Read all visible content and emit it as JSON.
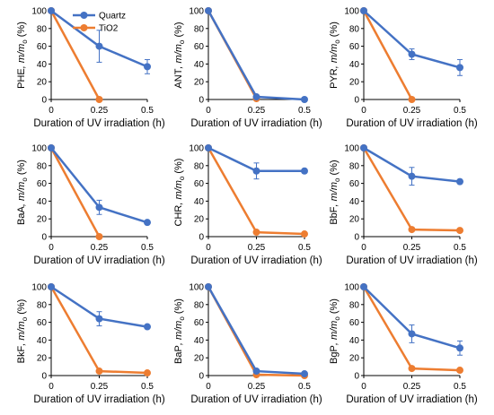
{
  "colors": {
    "quartz": "#4472C4",
    "tio2": "#ED7D31",
    "axis": "#000000"
  },
  "chart_data": [
    {
      "type": "line",
      "compound": "PHE",
      "ylabel_suffix": ", m/m",
      "ylabel_sub": "o",
      "ylabel_unit": " (%)",
      "xlabel": "Duration of UV irradiation (h)",
      "x": [
        0,
        0.25,
        0.5
      ],
      "x_ticks": [
        "0",
        "0.25",
        "0.5"
      ],
      "y_ticks": [
        "0",
        "20",
        "40",
        "60",
        "80",
        "100"
      ],
      "ylim": [
        0,
        100
      ],
      "legend": {
        "placement": "top-right",
        "entries": [
          "Quartz",
          "TiO2"
        ]
      },
      "series": [
        {
          "name": "Quartz",
          "values": [
            100,
            60,
            37
          ],
          "errors": [
            0,
            18,
            8
          ]
        },
        {
          "name": "TiO2",
          "values": [
            100,
            0,
            null
          ],
          "errors": [
            0,
            0,
            0
          ]
        }
      ]
    },
    {
      "type": "line",
      "compound": "ANT",
      "ylabel_suffix": ", m/m",
      "ylabel_sub": "o",
      "ylabel_unit": " (%)",
      "xlabel": "Duration of UV irradiation (h)",
      "x": [
        0,
        0.25,
        0.5
      ],
      "x_ticks": [
        "0",
        "0.25",
        "0.5"
      ],
      "y_ticks": [
        "0",
        "20",
        "40",
        "60",
        "80",
        "100"
      ],
      "ylim": [
        0,
        100
      ],
      "series": [
        {
          "name": "Quartz",
          "values": [
            100,
            3,
            0
          ],
          "errors": [
            0,
            0,
            0
          ]
        },
        {
          "name": "TiO2",
          "values": [
            100,
            1,
            null
          ],
          "errors": [
            0,
            0,
            0
          ]
        }
      ]
    },
    {
      "type": "line",
      "compound": "PYR",
      "ylabel_suffix": ", m/m",
      "ylabel_sub": "o",
      "ylabel_unit": " (%)",
      "xlabel": "Duration of UV irradiation (h)",
      "x": [
        0,
        0.25,
        0.5
      ],
      "x_ticks": [
        "0",
        "0.25",
        "0.5"
      ],
      "y_ticks": [
        "0",
        "20",
        "40",
        "60",
        "80",
        "100"
      ],
      "ylim": [
        0,
        100
      ],
      "series": [
        {
          "name": "Quartz",
          "values": [
            100,
            51,
            36
          ],
          "errors": [
            0,
            6,
            9
          ]
        },
        {
          "name": "TiO2",
          "values": [
            100,
            0,
            null
          ],
          "errors": [
            0,
            0,
            0
          ]
        }
      ]
    },
    {
      "type": "line",
      "compound": "BaA",
      "ylabel_suffix": ", m/m",
      "ylabel_sub": "o",
      "ylabel_unit": " (%)",
      "xlabel": "Duration of UV irradiation (h)",
      "x": [
        0,
        0.25,
        0.5
      ],
      "x_ticks": [
        "0",
        "0.25",
        "0.5"
      ],
      "y_ticks": [
        "0",
        "20",
        "40",
        "60",
        "80",
        "100"
      ],
      "ylim": [
        0,
        100
      ],
      "series": [
        {
          "name": "Quartz",
          "values": [
            100,
            33,
            16
          ],
          "errors": [
            0,
            8,
            0
          ]
        },
        {
          "name": "TiO2",
          "values": [
            100,
            0,
            null
          ],
          "errors": [
            0,
            0,
            0
          ]
        }
      ]
    },
    {
      "type": "line",
      "compound": "CHR",
      "ylabel_suffix": ", m/m",
      "ylabel_sub": "o",
      "ylabel_unit": " (%)",
      "xlabel": "Duration of UV irradiation (h)",
      "x": [
        0,
        0.25,
        0.5
      ],
      "x_ticks": [
        "0",
        "0.25",
        "0.5"
      ],
      "y_ticks": [
        "0",
        "20",
        "40",
        "60",
        "80",
        "100"
      ],
      "ylim": [
        0,
        100
      ],
      "series": [
        {
          "name": "Quartz",
          "values": [
            100,
            74,
            74
          ],
          "errors": [
            0,
            9,
            0
          ]
        },
        {
          "name": "TiO2",
          "values": [
            100,
            5,
            3
          ],
          "errors": [
            0,
            0,
            0
          ]
        }
      ]
    },
    {
      "type": "line",
      "compound": "BbF",
      "ylabel_suffix": ", m/m",
      "ylabel_sub": "o",
      "ylabel_unit": " (%)",
      "xlabel": "Duration of UV irradiation (h)",
      "x": [
        0,
        0.25,
        0.5
      ],
      "x_ticks": [
        "0",
        "0.25",
        "0.5"
      ],
      "y_ticks": [
        "0",
        "20",
        "40",
        "60",
        "80",
        "100"
      ],
      "ylim": [
        0,
        100
      ],
      "series": [
        {
          "name": "Quartz",
          "values": [
            100,
            68,
            62
          ],
          "errors": [
            0,
            10,
            0
          ]
        },
        {
          "name": "TiO2",
          "values": [
            100,
            8,
            7
          ],
          "errors": [
            0,
            0,
            0
          ]
        }
      ]
    },
    {
      "type": "line",
      "compound": "BkF",
      "ylabel_suffix": ", m/m",
      "ylabel_sub": "o",
      "ylabel_unit": " (%)",
      "xlabel": "Duration of UV irradiation (h)",
      "x": [
        0,
        0.25,
        0.5
      ],
      "x_ticks": [
        "0",
        "0.25",
        "0.5"
      ],
      "y_ticks": [
        "0",
        "20",
        "40",
        "60",
        "80",
        "100"
      ],
      "ylim": [
        0,
        100
      ],
      "series": [
        {
          "name": "Quartz",
          "values": [
            100,
            64,
            55
          ],
          "errors": [
            0,
            8,
            0
          ]
        },
        {
          "name": "TiO2",
          "values": [
            100,
            5,
            3
          ],
          "errors": [
            0,
            0,
            0
          ]
        }
      ]
    },
    {
      "type": "line",
      "compound": "BaP",
      "ylabel_suffix": ", m/m",
      "ylabel_sub": "o",
      "ylabel_unit": " (%)",
      "xlabel": "Duration of UV irradiation (h)",
      "x": [
        0,
        0.25,
        0.5
      ],
      "x_ticks": [
        "0",
        "0.25",
        "0.5"
      ],
      "y_ticks": [
        "0",
        "20",
        "40",
        "60",
        "80",
        "100"
      ],
      "ylim": [
        0,
        100
      ],
      "series": [
        {
          "name": "Quartz",
          "values": [
            100,
            5,
            2
          ],
          "errors": [
            0,
            0,
            0
          ]
        },
        {
          "name": "TiO2",
          "values": [
            100,
            1,
            0
          ],
          "errors": [
            0,
            0,
            0
          ]
        }
      ]
    },
    {
      "type": "line",
      "compound": "BgP",
      "ylabel_suffix": ", m/m",
      "ylabel_sub": "o",
      "ylabel_unit": " (%)",
      "xlabel": "Duration of UV irradiation (h)",
      "x": [
        0,
        0.25,
        0.5
      ],
      "x_ticks": [
        "0",
        "0.25",
        "0.5"
      ],
      "y_ticks": [
        "0",
        "20",
        "40",
        "60",
        "80",
        "100"
      ],
      "ylim": [
        0,
        100
      ],
      "series": [
        {
          "name": "Quartz",
          "values": [
            100,
            47,
            31
          ],
          "errors": [
            0,
            10,
            8
          ]
        },
        {
          "name": "TiO2",
          "values": [
            100,
            8,
            6
          ],
          "errors": [
            0,
            0,
            0
          ]
        }
      ]
    }
  ]
}
